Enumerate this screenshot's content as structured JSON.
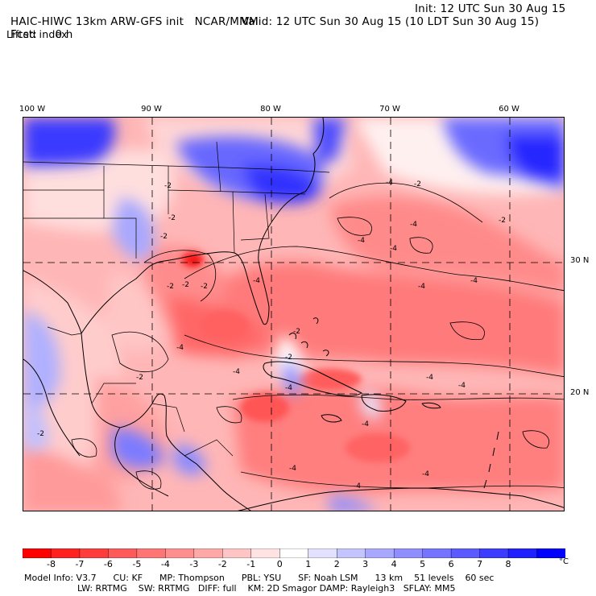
{
  "header": {
    "model_title": "HAIC-HIWC 13km ARW-GFS init",
    "org": "NCAR/MMM",
    "init": "Init: 12 UTC Sun 30 Aug 15",
    "fcst_label": "Fcst:",
    "fcst_value": "0 h",
    "valid": "Valid: 12 UTC Sun 30 Aug 15 (10 LDT Sun 30 Aug 15)",
    "field": "Lifted index"
  },
  "map": {
    "longitude_labels": [
      "100 W",
      "90 W",
      "80 W",
      "70 W",
      "60 W"
    ],
    "latitude_labels": [
      "30 N",
      "20 N"
    ],
    "contour_labels": [
      "-2",
      "-2",
      "-2",
      "-2",
      "-2",
      "-2",
      "-2",
      "-2",
      "-2",
      "-2",
      "-2",
      "-4",
      "-4",
      "-4",
      "-4",
      "-4",
      "-4",
      "-4",
      "-4",
      "-4",
      "-4",
      "-4",
      "-4",
      "-4",
      "-4",
      "-4",
      "-4",
      "-2"
    ]
  },
  "colorbar": {
    "labels": [
      "-8",
      "-7",
      "-6",
      "-5",
      "-4",
      "-3",
      "-2",
      "-1",
      "0",
      "1",
      "2",
      "3",
      "4",
      "5",
      "6",
      "7",
      "8"
    ],
    "unit": "°C",
    "colors": [
      "#ff0000",
      "#ff2020",
      "#ff3c3c",
      "#ff5a5a",
      "#ff7474",
      "#ff8e8e",
      "#ffa8a8",
      "#ffc4c4",
      "#ffe2e2",
      "#ffffff",
      "#e2e2ff",
      "#c4c4ff",
      "#a8a8ff",
      "#8e8eff",
      "#7474ff",
      "#5a5aff",
      "#3c3cff",
      "#2020ff",
      "#0000ff"
    ]
  },
  "footer": {
    "line1": "Model Info: V3.7      CU: KF      MP: Thompson      PBL: YSU      SF: Noah LSM      13 km    51 levels    60 sec",
    "line2": "LW: RRTMG    SW: RRTMG   DIFF: full    KM: 2D Smagor DAMP: Rayleigh3   SFLAY: MM5"
  }
}
